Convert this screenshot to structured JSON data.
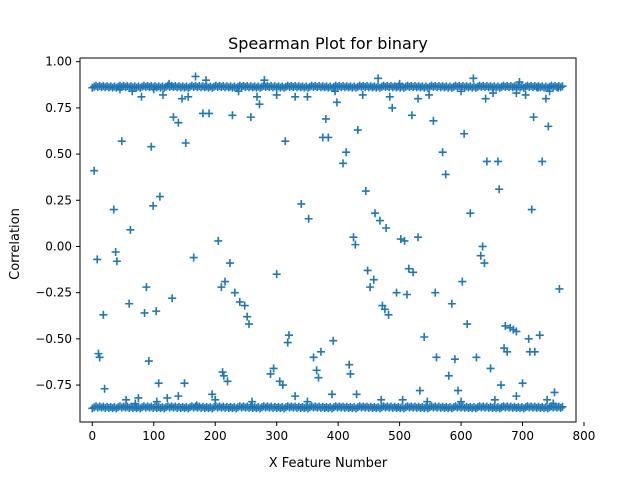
{
  "chart_data": {
    "type": "scatter",
    "title": "Spearman Plot for binary",
    "xlabel": "X Feature Number",
    "ylabel": "Correlation",
    "xlim": [
      -20,
      787
    ],
    "ylim": [
      -0.95,
      1.02
    ],
    "xticks": [
      0,
      100,
      200,
      300,
      400,
      500,
      600,
      700,
      800
    ],
    "yticks": [
      -0.75,
      -0.5,
      -0.25,
      0.0,
      0.25,
      0.5,
      0.75,
      1.0
    ],
    "xtick_labels": [
      "0",
      "100",
      "200",
      "300",
      "400",
      "500",
      "600",
      "700",
      "800"
    ],
    "ytick_labels": [
      "−0.75",
      "−0.50",
      "−0.25",
      "0.00",
      "0.25",
      "0.50",
      "0.75",
      "1.00"
    ],
    "marker": "+",
    "color": "#1f77b4",
    "grid": false,
    "dense_bands": [
      {
        "y": 0.865,
        "x_from": 0,
        "x_to": 767
      },
      {
        "y": -0.87,
        "x_from": 0,
        "x_to": 767
      }
    ],
    "points": [
      [
        3,
        0.41
      ],
      [
        8,
        -0.07
      ],
      [
        10,
        -0.58
      ],
      [
        12,
        -0.6
      ],
      [
        18,
        -0.37
      ],
      [
        20,
        -0.77
      ],
      [
        35,
        0.2
      ],
      [
        38,
        -0.03
      ],
      [
        40,
        -0.08
      ],
      [
        48,
        0.57
      ],
      [
        62,
        0.09
      ],
      [
        60,
        -0.31
      ],
      [
        75,
        -0.82
      ],
      [
        80,
        0.81
      ],
      [
        85,
        -0.36
      ],
      [
        88,
        -0.22
      ],
      [
        92,
        -0.62
      ],
      [
        96,
        0.54
      ],
      [
        99,
        0.22
      ],
      [
        104,
        -0.35
      ],
      [
        108,
        -0.74
      ],
      [
        110,
        0.27
      ],
      [
        122,
        -0.82
      ],
      [
        130,
        -0.28
      ],
      [
        132,
        0.7
      ],
      [
        140,
        0.67
      ],
      [
        146,
        0.8
      ],
      [
        150,
        -0.74
      ],
      [
        152,
        0.56
      ],
      [
        156,
        0.81
      ],
      [
        165,
        -0.06
      ],
      [
        168,
        0.92
      ],
      [
        170,
        -0.86
      ],
      [
        180,
        0.72
      ],
      [
        185,
        0.9
      ],
      [
        195,
        -0.8
      ],
      [
        205,
        0.03
      ],
      [
        210,
        -0.22
      ],
      [
        214,
        -0.7
      ],
      [
        216,
        -0.19
      ],
      [
        220,
        -0.73
      ],
      [
        224,
        -0.09
      ],
      [
        228,
        0.71
      ],
      [
        232,
        -0.25
      ],
      [
        240,
        -0.3
      ],
      [
        248,
        -0.32
      ],
      [
        252,
        -0.38
      ],
      [
        255,
        -0.42
      ],
      [
        258,
        0.7
      ],
      [
        268,
        0.81
      ],
      [
        272,
        0.77
      ],
      [
        280,
        0.9
      ],
      [
        290,
        -0.69
      ],
      [
        295,
        -0.66
      ],
      [
        300,
        -0.15
      ],
      [
        310,
        -0.75
      ],
      [
        314,
        0.57
      ],
      [
        318,
        -0.52
      ],
      [
        320,
        -0.48
      ],
      [
        330,
        -0.81
      ],
      [
        340,
        0.23
      ],
      [
        350,
        0.81
      ],
      [
        352,
        0.15
      ],
      [
        360,
        -0.6
      ],
      [
        365,
        -0.67
      ],
      [
        368,
        -0.71
      ],
      [
        372,
        -0.57
      ],
      [
        375,
        0.59
      ],
      [
        380,
        0.69
      ],
      [
        384,
        0.59
      ],
      [
        392,
        -0.51
      ],
      [
        398,
        0.78
      ],
      [
        408,
        0.45
      ],
      [
        413,
        0.51
      ],
      [
        418,
        -0.64
      ],
      [
        420,
        -0.69
      ],
      [
        425,
        0.05
      ],
      [
        428,
        0.01
      ],
      [
        432,
        0.63
      ],
      [
        445,
        0.3
      ],
      [
        448,
        -0.13
      ],
      [
        452,
        -0.22
      ],
      [
        458,
        -0.18
      ],
      [
        460,
        0.18
      ],
      [
        465,
        0.91
      ],
      [
        468,
        0.14
      ],
      [
        472,
        -0.32
      ],
      [
        476,
        -0.34
      ],
      [
        478,
        0.1
      ],
      [
        482,
        -0.37
      ],
      [
        484,
        0.81
      ],
      [
        488,
        0.75
      ],
      [
        495,
        -0.25
      ],
      [
        502,
        0.04
      ],
      [
        508,
        0.03
      ],
      [
        512,
        -0.26
      ],
      [
        515,
        -0.12
      ],
      [
        520,
        0.71
      ],
      [
        522,
        -0.14
      ],
      [
        530,
        0.05
      ],
      [
        533,
        -0.78
      ],
      [
        540,
        -0.49
      ],
      [
        548,
        0.82
      ],
      [
        555,
        0.68
      ],
      [
        558,
        -0.25
      ],
      [
        560,
        -0.6
      ],
      [
        570,
        0.51
      ],
      [
        575,
        0.39
      ],
      [
        580,
        -0.7
      ],
      [
        585,
        -0.31
      ],
      [
        590,
        -0.61
      ],
      [
        595,
        -0.78
      ],
      [
        602,
        -0.19
      ],
      [
        605,
        0.61
      ],
      [
        610,
        -0.42
      ],
      [
        615,
        0.18
      ],
      [
        620,
        0.91
      ],
      [
        625,
        -0.6
      ],
      [
        632,
        -0.05
      ],
      [
        635,
        0.0
      ],
      [
        638,
        -0.09
      ],
      [
        642,
        0.46
      ],
      [
        648,
        -0.66
      ],
      [
        660,
        0.46
      ],
      [
        662,
        0.31
      ],
      [
        665,
        -0.75
      ],
      [
        670,
        -0.55
      ],
      [
        672,
        -0.43
      ],
      [
        675,
        -0.57
      ],
      [
        680,
        -0.44
      ],
      [
        685,
        -0.45
      ],
      [
        690,
        -0.46
      ],
      [
        695,
        0.89
      ],
      [
        700,
        -0.74
      ],
      [
        705,
        0.82
      ],
      [
        710,
        -0.5
      ],
      [
        712,
        -0.57
      ],
      [
        715,
        0.2
      ],
      [
        718,
        0.7
      ],
      [
        720,
        -0.57
      ],
      [
        728,
        -0.48
      ],
      [
        732,
        0.46
      ],
      [
        738,
        0.8
      ],
      [
        742,
        0.65
      ],
      [
        752,
        -0.79
      ],
      [
        758,
        0.86
      ],
      [
        760,
        -0.23
      ],
      [
        45,
        0.85
      ],
      [
        65,
        0.84
      ],
      [
        100,
        0.85
      ],
      [
        115,
        0.82
      ],
      [
        125,
        0.88
      ],
      [
        190,
        0.72
      ],
      [
        238,
        0.84
      ],
      [
        300,
        0.82
      ],
      [
        330,
        0.81
      ],
      [
        395,
        0.84
      ],
      [
        440,
        0.82
      ],
      [
        500,
        0.88
      ],
      [
        530,
        0.8
      ],
      [
        600,
        0.84
      ],
      [
        640,
        0.8
      ],
      [
        652,
        0.83
      ],
      [
        690,
        0.83
      ],
      [
        725,
        0.86
      ],
      [
        744,
        0.84
      ],
      [
        55,
        -0.83
      ],
      [
        70,
        -0.85
      ],
      [
        105,
        -0.84
      ],
      [
        140,
        -0.81
      ],
      [
        200,
        -0.83
      ],
      [
        212,
        -0.68
      ],
      [
        260,
        -0.84
      ],
      [
        305,
        -0.73
      ],
      [
        350,
        -0.84
      ],
      [
        390,
        -0.8
      ],
      [
        430,
        -0.8
      ],
      [
        470,
        -0.83
      ],
      [
        505,
        -0.83
      ],
      [
        545,
        -0.84
      ],
      [
        600,
        -0.84
      ],
      [
        655,
        -0.83
      ],
      [
        690,
        -0.81
      ],
      [
        740,
        -0.83
      ],
      [
        750,
        -0.85
      ]
    ]
  }
}
